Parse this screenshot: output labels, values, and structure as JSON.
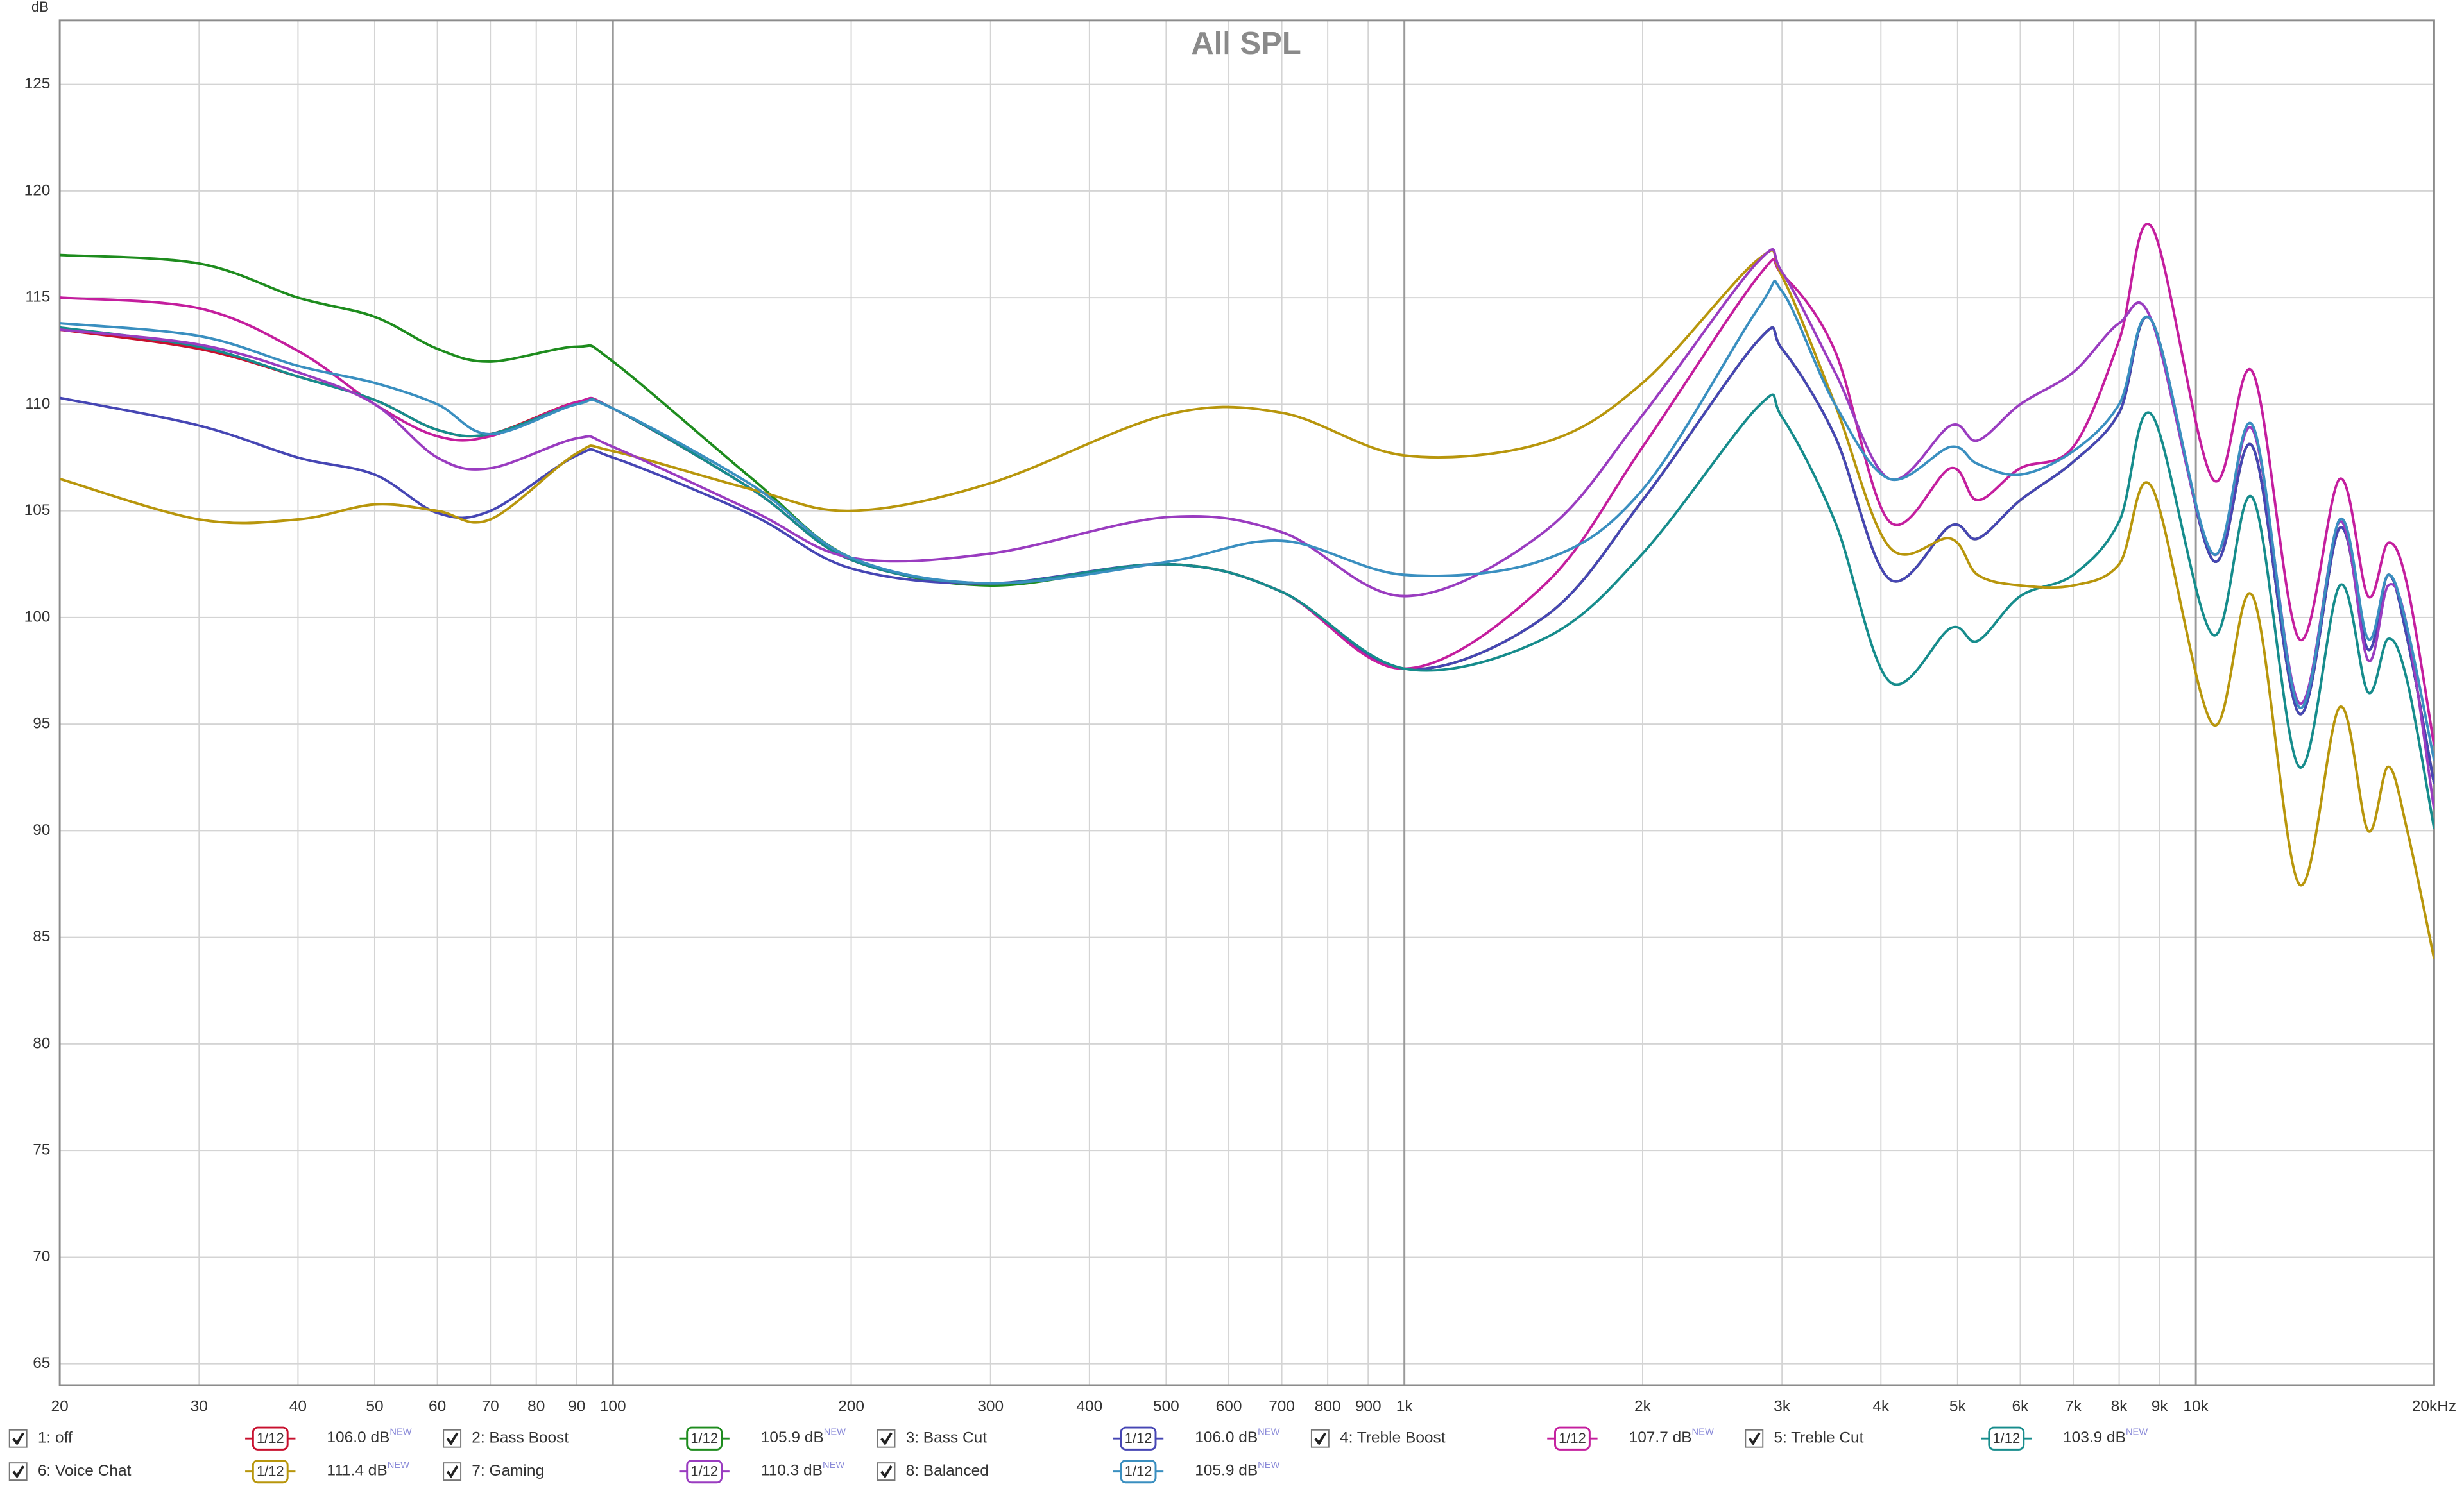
{
  "chart_data": {
    "type": "line",
    "title": "All SPL",
    "y_label": "dB",
    "xscale": "log",
    "grid": true,
    "xlim": [
      20,
      20000
    ],
    "ylim": [
      64,
      128
    ],
    "xticks": [
      20,
      30,
      40,
      50,
      60,
      70,
      80,
      90,
      100,
      200,
      300,
      400,
      500,
      600,
      700,
      800,
      900,
      {
        "value": 1000,
        "label": "1k"
      },
      {
        "value": 2000,
        "label": "2k"
      },
      {
        "value": 3000,
        "label": "3k"
      },
      {
        "value": 4000,
        "label": "4k"
      },
      {
        "value": 5000,
        "label": "5k"
      },
      {
        "value": 6000,
        "label": "6k"
      },
      {
        "value": 7000,
        "label": "7k"
      },
      {
        "value": 8000,
        "label": "8k"
      },
      {
        "value": 9000,
        "label": "9k"
      },
      {
        "value": 10000,
        "label": "10k"
      },
      {
        "value": 20000,
        "label": "20kHz"
      }
    ],
    "yticks": [
      65,
      70,
      75,
      80,
      85,
      90,
      95,
      100,
      105,
      110,
      115,
      120,
      125
    ],
    "x": [
      20,
      30,
      40,
      50,
      60,
      70,
      90,
      100,
      150,
      200,
      300,
      500,
      700,
      1000,
      1500,
      2000,
      2800,
      3000,
      3500,
      4100,
      4900,
      5300,
      6000,
      7000,
      8000,
      8800,
      10500,
      11800,
      13500,
      15200,
      16500,
      17500,
      18500,
      20000
    ],
    "series": [
      {
        "name": "1: off",
        "color": "#c8102e",
        "smoothing": "1/12",
        "level": "106.0 dB",
        "badge": "NEW",
        "values": [
          113.5,
          112.6,
          111.3,
          110.2,
          108.8,
          108.6,
          110.1,
          109.8,
          106.0,
          102.7,
          101.6,
          102.5,
          101.2,
          97.6,
          100.0,
          105.5,
          113.0,
          112.6,
          108.5,
          101.8,
          104.3,
          103.7,
          105.5,
          107.3,
          109.6,
          113.9,
          102.7,
          108.0,
          95.5,
          104.2,
          98.5,
          102.0,
          99.0,
          92.2
        ]
      },
      {
        "name": "2: Bass Boost",
        "color": "#1e8c1e",
        "smoothing": "1/12",
        "level": "105.9 dB",
        "badge": "NEW",
        "values": [
          117.0,
          116.6,
          115.0,
          114.1,
          112.6,
          112.0,
          112.7,
          112.0,
          106.5,
          102.8,
          101.5,
          102.5,
          101.2,
          97.6,
          100.0,
          105.5,
          113.0,
          112.6,
          108.5,
          101.8,
          104.3,
          103.7,
          105.5,
          107.3,
          109.6,
          113.9,
          102.7,
          108.0,
          95.5,
          104.2,
          98.5,
          102.0,
          99.0,
          92.2
        ]
      },
      {
        "name": "3: Bass Cut",
        "color": "#4646b4",
        "smoothing": "1/12",
        "level": "106.0 dB",
        "badge": "NEW",
        "values": [
          110.3,
          109.0,
          107.5,
          106.7,
          104.9,
          105.0,
          107.6,
          107.5,
          104.8,
          102.3,
          101.6,
          102.5,
          101.2,
          97.6,
          100.0,
          105.5,
          113.0,
          112.6,
          108.5,
          101.8,
          104.3,
          103.7,
          105.5,
          107.3,
          109.6,
          113.9,
          102.7,
          108.0,
          95.5,
          104.2,
          98.5,
          102.0,
          99.0,
          92.2
        ]
      },
      {
        "name": "4: Treble Boost",
        "color": "#c41e9e",
        "smoothing": "1/12",
        "level": "107.7 dB",
        "badge": "NEW",
        "values": [
          115.0,
          114.5,
          112.5,
          110.0,
          108.5,
          108.5,
          110.1,
          109.8,
          106.0,
          102.7,
          101.6,
          102.5,
          101.2,
          97.6,
          101.5,
          108.0,
          116.0,
          116.1,
          112.5,
          104.5,
          107.0,
          105.5,
          107.0,
          108.0,
          113.0,
          118.3,
          106.5,
          111.5,
          99.0,
          106.5,
          101.0,
          103.5,
          101.5,
          94.0
        ]
      },
      {
        "name": "5: Treble Cut",
        "color": "#168c8c",
        "smoothing": "1/12",
        "level": "103.9 dB",
        "badge": "NEW",
        "values": [
          113.6,
          112.7,
          111.3,
          110.2,
          108.8,
          108.6,
          110.0,
          109.8,
          106.0,
          102.7,
          101.6,
          102.5,
          101.2,
          97.6,
          99.0,
          103.0,
          109.9,
          109.4,
          104.5,
          97.0,
          99.5,
          98.9,
          101.0,
          102.0,
          104.5,
          109.5,
          99.2,
          105.6,
          93.0,
          101.5,
          96.5,
          99.0,
          97.0,
          90.1
        ]
      },
      {
        "name": "6: Voice Chat",
        "color": "#b8960c",
        "smoothing": "1/12",
        "level": "111.4 dB",
        "badge": "NEW",
        "values": [
          106.5,
          104.6,
          104.6,
          105.3,
          105.0,
          104.6,
          107.7,
          107.8,
          106.0,
          105.0,
          106.3,
          109.5,
          109.6,
          107.6,
          108.2,
          111.0,
          116.8,
          116.0,
          110.0,
          103.3,
          103.7,
          102.0,
          101.5,
          101.5,
          102.5,
          106.1,
          95.0,
          101.0,
          87.5,
          95.8,
          90.0,
          93.0,
          90.0,
          84.0
        ]
      },
      {
        "name": "7: Gaming",
        "color": "#9a3cc0",
        "smoothing": "1/12",
        "level": "110.3 dB",
        "badge": "NEW",
        "values": [
          113.5,
          112.8,
          111.5,
          110.0,
          107.5,
          107.0,
          108.4,
          108.0,
          105.0,
          102.8,
          103.0,
          104.7,
          104.0,
          101.0,
          104.0,
          109.5,
          116.7,
          116.2,
          111.5,
          106.5,
          109.0,
          108.3,
          110.0,
          111.5,
          113.8,
          113.9,
          103.0,
          108.8,
          96.0,
          104.5,
          98.0,
          101.5,
          99.5,
          91.0
        ]
      },
      {
        "name": "8: Balanced",
        "color": "#3a8fc0",
        "smoothing": "1/12",
        "level": "105.9 dB",
        "badge": "NEW",
        "values": [
          113.8,
          113.2,
          111.8,
          111.0,
          110.0,
          108.6,
          110.0,
          109.8,
          106.2,
          102.8,
          101.6,
          102.6,
          103.6,
          102.0,
          102.7,
          106.0,
          114.5,
          115.3,
          110.0,
          106.5,
          108.0,
          107.2,
          106.7,
          107.8,
          110.0,
          113.9,
          103.0,
          109.0,
          95.8,
          104.6,
          99.0,
          102.0,
          99.5,
          93.3
        ]
      }
    ]
  }
}
